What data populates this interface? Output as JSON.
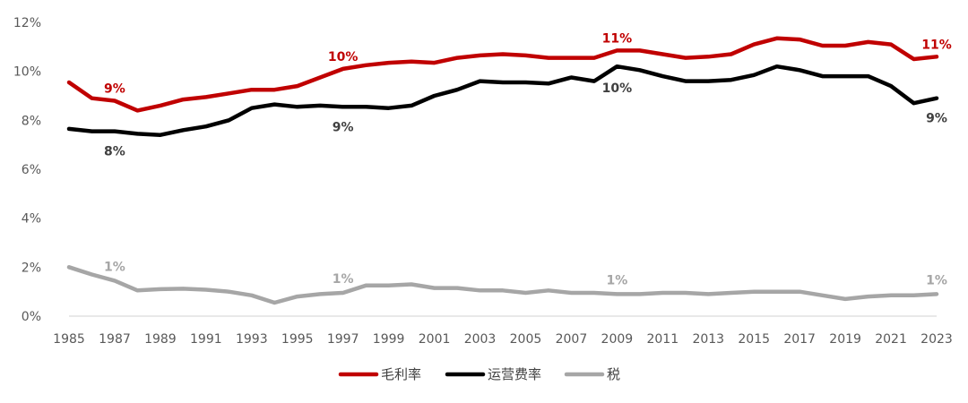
{
  "chart_data": {
    "type": "line",
    "title": "",
    "xlabel": "",
    "ylabel": "",
    "ylim": [
      0,
      12
    ],
    "yticks": [
      "0%",
      "2%",
      "4%",
      "6%",
      "8%",
      "10%",
      "12%"
    ],
    "x": [
      1985,
      1986,
      1987,
      1988,
      1989,
      1990,
      1991,
      1992,
      1993,
      1994,
      1995,
      1996,
      1997,
      1998,
      1999,
      2000,
      2001,
      2002,
      2003,
      2004,
      2005,
      2006,
      2007,
      2008,
      2009,
      2010,
      2011,
      2012,
      2013,
      2014,
      2015,
      2016,
      2017,
      2018,
      2019,
      2020,
      2021,
      2022,
      2023
    ],
    "xticks": [
      "1985",
      "1987",
      "1989",
      "1991",
      "1993",
      "1995",
      "1997",
      "1999",
      "2001",
      "2003",
      "2005",
      "2007",
      "2009",
      "2011",
      "2013",
      "2015",
      "2017",
      "2019",
      "2021",
      "2023"
    ],
    "grid": false,
    "legend_position": "bottom",
    "series": [
      {
        "name": "毛利率",
        "color": "#C00000",
        "values": [
          9.55,
          8.9,
          8.8,
          8.4,
          8.6,
          8.85,
          8.95,
          9.1,
          9.25,
          9.25,
          9.4,
          9.75,
          10.1,
          10.25,
          10.35,
          10.4,
          10.35,
          10.55,
          10.65,
          10.7,
          10.65,
          10.55,
          10.55,
          10.55,
          10.85,
          10.85,
          10.7,
          10.55,
          10.6,
          10.7,
          11.1,
          11.35,
          11.3,
          11.05,
          11.05,
          11.2,
          11.1,
          10.5,
          10.6
        ],
        "labels": [
          {
            "x": 1987,
            "y": 8.8,
            "text": "9%"
          },
          {
            "x": 1997,
            "y": 10.1,
            "text": "10%"
          },
          {
            "x": 2009,
            "y": 10.85,
            "text": "11%"
          },
          {
            "x": 2023,
            "y": 10.6,
            "text": "11%"
          }
        ]
      },
      {
        "name": "运营费率",
        "color": "#000000",
        "values": [
          7.65,
          7.55,
          7.55,
          7.45,
          7.4,
          7.6,
          7.75,
          8.0,
          8.5,
          8.65,
          8.55,
          8.6,
          8.55,
          8.55,
          8.5,
          8.6,
          9.0,
          9.25,
          9.6,
          9.55,
          9.55,
          9.5,
          9.75,
          9.6,
          10.2,
          10.05,
          9.8,
          9.6,
          9.6,
          9.65,
          9.85,
          10.2,
          10.05,
          9.8,
          9.8,
          9.8,
          9.4,
          8.7,
          8.9
        ],
        "labels": [
          {
            "x": 1987,
            "y": 7.55,
            "text": "8%"
          },
          {
            "x": 1997,
            "y": 8.55,
            "text": "9%"
          },
          {
            "x": 2009,
            "y": 10.2,
            "text": "10%"
          },
          {
            "x": 2023,
            "y": 8.9,
            "text": "9%"
          }
        ]
      },
      {
        "name": "税",
        "color": "#A6A6A6",
        "values": [
          2.0,
          1.7,
          1.45,
          1.05,
          1.1,
          1.12,
          1.08,
          1.0,
          0.85,
          0.55,
          0.8,
          0.9,
          0.95,
          1.25,
          1.25,
          1.3,
          1.15,
          1.15,
          1.05,
          1.05,
          0.95,
          1.05,
          0.95,
          0.95,
          0.9,
          0.9,
          0.95,
          0.95,
          0.9,
          0.95,
          1.0,
          1.0,
          1.0,
          0.85,
          0.7,
          0.8,
          0.85,
          0.85,
          0.9
        ],
        "labels": [
          {
            "x": 1987,
            "y": 1.45,
            "text": "1%"
          },
          {
            "x": 1997,
            "y": 0.95,
            "text": "1%"
          },
          {
            "x": 2009,
            "y": 0.9,
            "text": "1%"
          },
          {
            "x": 2023,
            "y": 0.9,
            "text": "1%"
          }
        ]
      }
    ]
  }
}
